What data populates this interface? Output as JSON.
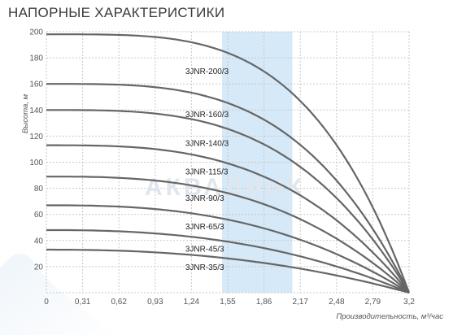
{
  "title": "НАПОРНЫЕ ХАРАКТЕРИСТИКИ",
  "watermark": "АКВАЛИНК",
  "chart_data": {
    "type": "line",
    "xlabel": "Производительность, м³/час",
    "ylabel": "Высота, м",
    "xlim": [
      0,
      3.2
    ],
    "ylim": [
      0,
      200
    ],
    "x_ticks": [
      "0",
      "0,31",
      "0,62",
      "0,93",
      "1,24",
      "1,55",
      "1,86",
      "2,17",
      "2,48",
      "2,79",
      "3,2"
    ],
    "y_ticks": [
      "20",
      "40",
      "60",
      "80",
      "100",
      "120",
      "140",
      "160",
      "180",
      "200"
    ],
    "grid": true,
    "highlight_band": {
      "from": 1.55,
      "to": 2.17,
      "color": "#d5e9f8"
    },
    "curve_color": "#666666",
    "series": [
      {
        "name": "3JNR-200/3",
        "shutoff_head": 198,
        "label_at": [
          1.24,
          170
        ]
      },
      {
        "name": "3JNR-160/3",
        "shutoff_head": 160,
        "label_at": [
          1.24,
          137
        ]
      },
      {
        "name": "3JNR-140/3",
        "shutoff_head": 140,
        "label_at": [
          1.24,
          115
        ]
      },
      {
        "name": "3JNR-115/3",
        "shutoff_head": 113,
        "label_at": [
          1.24,
          93
        ]
      },
      {
        "name": "3JNR-90/3",
        "shutoff_head": 89,
        "label_at": [
          1.24,
          73
        ]
      },
      {
        "name": "3JNR-65/3",
        "shutoff_head": 67,
        "label_at": [
          1.24,
          51
        ]
      },
      {
        "name": "3JNR-45/3",
        "shutoff_head": 48,
        "label_at": [
          1.24,
          34
        ]
      },
      {
        "name": "3JNR-35/3",
        "shutoff_head": 33,
        "label_at": [
          1.24,
          20
        ]
      }
    ],
    "end_point": [
      3.2,
      0
    ]
  }
}
